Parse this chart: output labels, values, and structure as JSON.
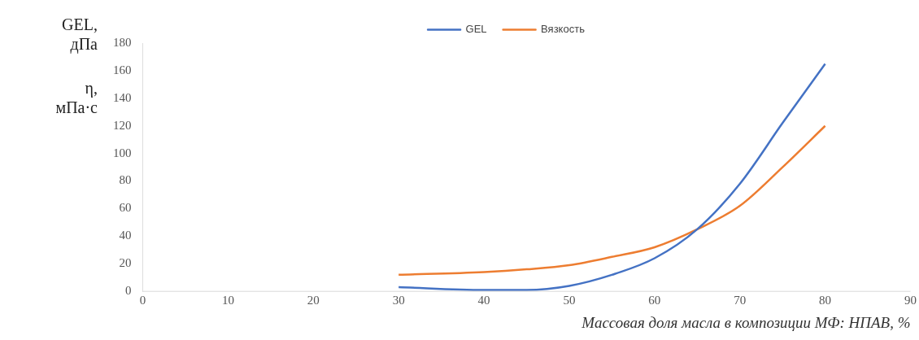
{
  "chart_data": {
    "type": "line",
    "xlabel": "Массовая доля масла в композиции МФ: НПАВ, %",
    "ylabel": "GEL, дПа\nη, мПа·с",
    "x": [
      30,
      40,
      45,
      50,
      55,
      60,
      65,
      70,
      75,
      80
    ],
    "series": [
      {
        "name": "GEL",
        "color": "#4472c4",
        "values": [
          3,
          1,
          1,
          4,
          12,
          24,
          45,
          78,
          122,
          165
        ]
      },
      {
        "name": "Вязкость",
        "color": "#ed7d31",
        "values": [
          12,
          14,
          16,
          19,
          25,
          32,
          45,
          62,
          90,
          120
        ]
      }
    ],
    "xlim": [
      0,
      90
    ],
    "xticks": [
      0,
      10,
      20,
      30,
      40,
      50,
      60,
      70,
      80,
      90
    ],
    "ylim": [
      0,
      180
    ],
    "yticks": [
      0,
      20,
      40,
      60,
      80,
      100,
      120,
      140,
      160,
      180
    ],
    "grid": false,
    "legend": "top",
    "marker": "none",
    "line_style": "solid"
  }
}
